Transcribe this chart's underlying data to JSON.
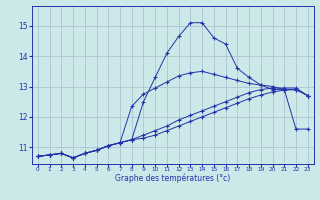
{
  "xlabel": "Graphe des températures (°c)",
  "bg_color": "#cce8e8",
  "grid_color": "#aabbcc",
  "line_color": "#2233aa",
  "xlim": [
    -0.5,
    23.5
  ],
  "ylim": [
    10.45,
    15.65
  ],
  "yticks": [
    11,
    12,
    13,
    14,
    15
  ],
  "xticks": [
    0,
    1,
    2,
    3,
    4,
    5,
    6,
    7,
    8,
    9,
    10,
    11,
    12,
    13,
    14,
    15,
    16,
    17,
    18,
    19,
    20,
    21,
    22,
    23
  ],
  "line1_x": [
    0,
    1,
    2,
    3,
    4,
    5,
    6,
    7,
    8,
    9,
    10,
    11,
    12,
    13,
    14,
    15,
    16,
    17,
    18,
    19,
    20,
    21,
    22,
    23
  ],
  "line1_y": [
    10.7,
    10.75,
    10.8,
    10.65,
    10.8,
    10.9,
    11.05,
    11.15,
    11.25,
    12.5,
    13.3,
    14.1,
    14.65,
    15.1,
    15.1,
    14.6,
    14.4,
    13.6,
    13.3,
    13.05,
    13.0,
    12.9,
    12.9,
    12.7
  ],
  "line2_x": [
    0,
    1,
    2,
    3,
    4,
    5,
    6,
    7,
    8,
    9,
    10,
    11,
    12,
    13,
    14,
    15,
    16,
    17,
    18,
    19,
    20,
    21,
    22,
    23
  ],
  "line2_y": [
    10.7,
    10.75,
    10.8,
    10.65,
    10.8,
    10.9,
    11.05,
    11.15,
    11.25,
    11.4,
    11.55,
    11.7,
    11.9,
    12.05,
    12.2,
    12.35,
    12.5,
    12.65,
    12.8,
    12.9,
    12.95,
    12.95,
    12.95,
    12.7
  ],
  "line3_x": [
    0,
    1,
    2,
    3,
    4,
    5,
    6,
    7,
    8,
    9,
    10,
    11,
    12,
    13,
    14,
    15,
    16,
    17,
    18,
    19,
    20,
    21,
    22,
    23
  ],
  "line3_y": [
    10.7,
    10.75,
    10.8,
    10.65,
    10.8,
    10.9,
    11.05,
    11.15,
    11.25,
    11.3,
    11.4,
    11.55,
    11.7,
    11.85,
    12.0,
    12.15,
    12.3,
    12.45,
    12.6,
    12.72,
    12.82,
    12.88,
    12.9,
    12.7
  ],
  "line4_x": [
    0,
    1,
    2,
    3,
    4,
    5,
    6,
    7,
    8,
    9,
    10,
    11,
    12,
    13,
    14,
    15,
    16,
    17,
    18,
    19,
    20,
    21,
    22,
    23
  ],
  "line4_y": [
    10.7,
    10.75,
    10.8,
    10.65,
    10.8,
    10.9,
    11.05,
    11.15,
    12.35,
    12.75,
    12.95,
    13.15,
    13.35,
    13.45,
    13.5,
    13.4,
    13.3,
    13.2,
    13.1,
    13.05,
    12.9,
    12.9,
    11.6,
    11.6
  ]
}
